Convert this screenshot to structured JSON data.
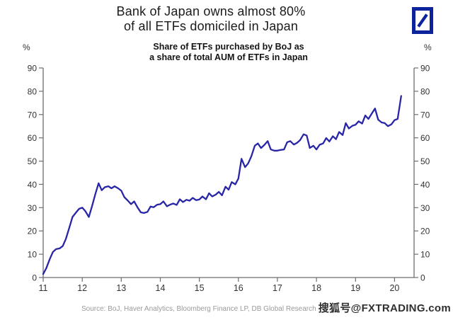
{
  "header": {
    "title_line1": "Bank of Japan owns almost 80%",
    "title_line2": "of all ETFs domiciled in Japan",
    "subtitle_line1": "Share of ETFs purchased by BoJ as",
    "subtitle_line2": "a share of total AUM of ETFs in Japan"
  },
  "logo": {
    "name": "Deutsche Bank",
    "color": "#0c239c"
  },
  "axes": {
    "left_unit": "%",
    "right_unit": "%",
    "y_ticks": [
      0,
      10,
      20,
      30,
      40,
      50,
      60,
      70,
      80,
      90
    ],
    "x_ticks": [
      11,
      12,
      13,
      14,
      15,
      16,
      17,
      18,
      19,
      20
    ],
    "ylim": [
      0,
      90
    ],
    "xlim": [
      11,
      20.5
    ]
  },
  "chart_data": {
    "type": "line",
    "title": "Share of ETFs purchased by BoJ as a share of total AUM of ETFs in Japan",
    "series_name": "BoJ share of total ETF AUM in Japan (%)",
    "line_color": "#2826a6",
    "x_unit": "year (2011-2020)",
    "grid": false,
    "legend": "none",
    "points": [
      [
        11.0,
        1.5
      ],
      [
        11.08,
        4
      ],
      [
        11.17,
        8
      ],
      [
        11.25,
        11
      ],
      [
        11.33,
        12.2
      ],
      [
        11.42,
        12.5
      ],
      [
        11.5,
        13.5
      ],
      [
        11.58,
        16.5
      ],
      [
        11.67,
        21.5
      ],
      [
        11.75,
        26
      ],
      [
        11.83,
        27.7
      ],
      [
        11.92,
        29.5
      ],
      [
        12.0,
        30
      ],
      [
        12.08,
        28.5
      ],
      [
        12.17,
        26
      ],
      [
        12.25,
        30.5
      ],
      [
        12.33,
        35.5
      ],
      [
        12.42,
        40.5
      ],
      [
        12.5,
        37.5
      ],
      [
        12.58,
        38.8
      ],
      [
        12.67,
        39.2
      ],
      [
        12.75,
        38.3
      ],
      [
        12.83,
        39.2
      ],
      [
        12.92,
        38.3
      ],
      [
        13.0,
        37.3
      ],
      [
        13.08,
        34.5
      ],
      [
        13.17,
        33
      ],
      [
        13.25,
        31.5
      ],
      [
        13.33,
        32.7
      ],
      [
        13.42,
        30
      ],
      [
        13.5,
        28
      ],
      [
        13.58,
        27.7
      ],
      [
        13.67,
        28.2
      ],
      [
        13.75,
        30.5
      ],
      [
        13.83,
        30.2
      ],
      [
        13.92,
        31.3
      ],
      [
        14.0,
        31.5
      ],
      [
        14.08,
        32.7
      ],
      [
        14.17,
        30.6
      ],
      [
        14.25,
        31.3
      ],
      [
        14.33,
        31.8
      ],
      [
        14.42,
        31.2
      ],
      [
        14.5,
        33.6
      ],
      [
        14.58,
        32.4
      ],
      [
        14.67,
        33.4
      ],
      [
        14.75,
        33
      ],
      [
        14.83,
        34.2
      ],
      [
        14.92,
        33.2
      ],
      [
        15.0,
        33.5
      ],
      [
        15.08,
        34.8
      ],
      [
        15.17,
        33.6
      ],
      [
        15.25,
        36.2
      ],
      [
        15.33,
        34.8
      ],
      [
        15.42,
        35.6
      ],
      [
        15.5,
        36.8
      ],
      [
        15.58,
        35.3
      ],
      [
        15.67,
        39
      ],
      [
        15.75,
        37.7
      ],
      [
        15.83,
        41
      ],
      [
        15.92,
        40
      ],
      [
        16.0,
        42.5
      ],
      [
        16.08,
        51
      ],
      [
        16.17,
        47.4
      ],
      [
        16.25,
        49
      ],
      [
        16.33,
        52
      ],
      [
        16.42,
        56.6
      ],
      [
        16.5,
        57.6
      ],
      [
        16.58,
        55.6
      ],
      [
        16.67,
        57
      ],
      [
        16.75,
        58.6
      ],
      [
        16.83,
        55
      ],
      [
        16.92,
        54.5
      ],
      [
        17.0,
        54.5
      ],
      [
        17.08,
        54.8
      ],
      [
        17.17,
        55
      ],
      [
        17.25,
        58.1
      ],
      [
        17.33,
        58.6
      ],
      [
        17.42,
        57.1
      ],
      [
        17.5,
        57.8
      ],
      [
        17.58,
        59
      ],
      [
        17.67,
        61.5
      ],
      [
        17.75,
        61
      ],
      [
        17.83,
        55.6
      ],
      [
        17.92,
        56.6
      ],
      [
        18.0,
        55
      ],
      [
        18.08,
        57
      ],
      [
        18.17,
        57.6
      ],
      [
        18.25,
        59.9
      ],
      [
        18.33,
        58.4
      ],
      [
        18.42,
        60.7
      ],
      [
        18.5,
        59.4
      ],
      [
        18.58,
        62.5
      ],
      [
        18.67,
        61.2
      ],
      [
        18.75,
        66.3
      ],
      [
        18.83,
        64
      ],
      [
        18.92,
        65.2
      ],
      [
        19.0,
        65.6
      ],
      [
        19.08,
        67.1
      ],
      [
        19.17,
        66.1
      ],
      [
        19.25,
        69.6
      ],
      [
        19.33,
        68.1
      ],
      [
        19.42,
        70.5
      ],
      [
        19.5,
        72.6
      ],
      [
        19.58,
        67.8
      ],
      [
        19.67,
        66.6
      ],
      [
        19.75,
        66.3
      ],
      [
        19.83,
        65
      ],
      [
        19.92,
        65.8
      ],
      [
        20.0,
        67.6
      ],
      [
        20.08,
        68.1
      ],
      [
        20.17,
        78
      ]
    ]
  },
  "footer": {
    "source": "Source: BoJ, Haver Analytics, Bloomberg Finance LP, DB Global Research",
    "watermark": "搜狐号@FXTRADING.com"
  }
}
